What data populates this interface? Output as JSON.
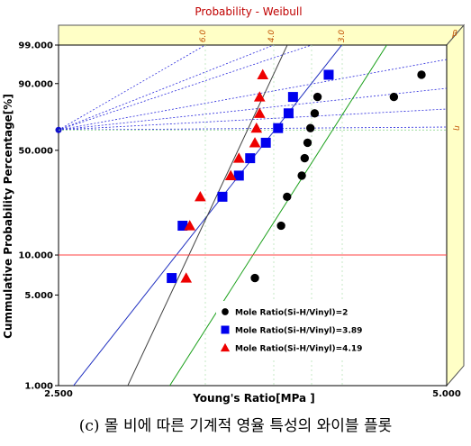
{
  "chart_data": {
    "type": "scatter",
    "title": "Probability - Weibull",
    "xlabel": "Young's  Ratio[MPa ]",
    "ylabel": "Cummulative Probability Percentage[%]",
    "x_scale": "log",
    "y_scale": "weibull",
    "xlim": [
      2.5,
      5.0
    ],
    "ylim": [
      1.0,
      99.0
    ],
    "x_tick_labels": [
      "2.500",
      "5.000"
    ],
    "y_ticks": [
      99.0,
      90.0,
      50.0,
      10.0,
      5.0,
      1.0
    ],
    "y_tick_labels": [
      "99.000",
      "90.000",
      "50.000",
      "10.000",
      "5.000",
      "1.000"
    ],
    "reference_line_y": 10.0,
    "beta_label": "β",
    "eta_label": "η",
    "slope_labels": [
      "6.0",
      "4.0",
      "3.0"
    ],
    "series": [
      {
        "name": "Mole Ratio(Si-H/Vinyl)=2",
        "marker": "circle",
        "color": "#000000",
        "fit_color": "#1aa01a",
        "x": [
          3.55,
          3.72,
          3.76,
          3.86,
          3.88,
          3.9,
          3.92,
          3.95,
          3.97,
          4.55,
          4.78
        ],
        "y": [
          6.73,
          16.35,
          25.96,
          35.58,
          45.19,
          54.81,
          64.42,
          74.04,
          83.65,
          83.65,
          93.27
        ]
      },
      {
        "name": "Mole Ratio(Si-H/Vinyl)=3.89",
        "marker": "square",
        "color": "#0000ee",
        "fit_color": "#2030c0",
        "x": [
          3.06,
          3.12,
          3.35,
          3.45,
          3.52,
          3.62,
          3.7,
          3.77,
          3.8,
          4.05
        ],
        "y": [
          6.73,
          16.35,
          25.96,
          35.58,
          45.19,
          54.81,
          64.42,
          74.04,
          83.65,
          93.27
        ]
      },
      {
        "name": "Mole Ratio(Si-H/Vinyl)=4.19",
        "marker": "triangle",
        "color": "#ee0000",
        "fit_color": "#404040",
        "x": [
          3.14,
          3.16,
          3.22,
          3.4,
          3.45,
          3.55,
          3.56,
          3.58,
          3.58,
          3.6
        ],
        "y": [
          6.73,
          16.35,
          25.96,
          35.58,
          45.19,
          54.81,
          64.42,
          74.04,
          83.65,
          93.27
        ]
      }
    ],
    "legend_position": "lower-right",
    "grid": false
  },
  "caption": "(c) 몰 비에 따른 기계적 영율 특성의 와이블 플롯"
}
